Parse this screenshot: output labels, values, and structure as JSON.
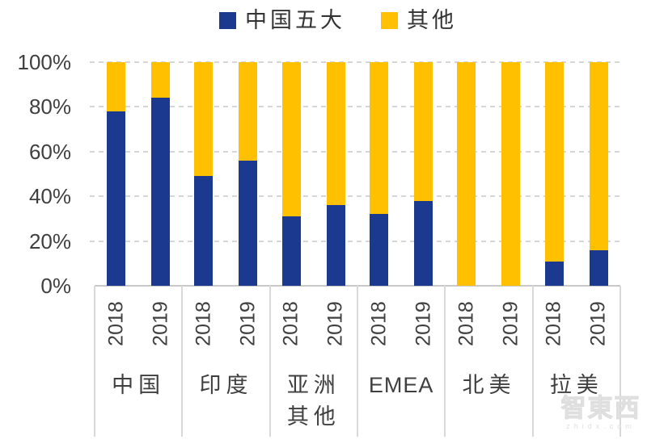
{
  "legend": {
    "items": [
      {
        "label": "中国五大",
        "color": "#1b3a8f"
      },
      {
        "label": "其他",
        "color": "#ffc000"
      }
    ]
  },
  "chart_data": {
    "type": "bar",
    "stacked": true,
    "title": "",
    "xlabel": "",
    "ylabel": "",
    "ylim": [
      0,
      100
    ],
    "grid": "dashed-horizontal",
    "legend_position": "top-center",
    "y_ticks": [
      "100%",
      "80%",
      "60%",
      "40%",
      "20%",
      "0%"
    ],
    "groups": [
      "中国",
      "印度",
      "亚洲\n其他",
      "EMEA",
      "北美",
      "拉美"
    ],
    "years": [
      "2018",
      "2019"
    ],
    "series": [
      {
        "name": "中国五大",
        "color": "#1b3a8f",
        "values": [
          78,
          84,
          49,
          56,
          31,
          36,
          32,
          38,
          0,
          0,
          11,
          16
        ]
      },
      {
        "name": "其他",
        "color": "#ffc000",
        "values": [
          22,
          16,
          51,
          44,
          69,
          64,
          68,
          62,
          100,
          100,
          89,
          84
        ]
      }
    ]
  },
  "watermark": {
    "text": "智東西",
    "subtext": "zhidx.com"
  },
  "colors": {
    "blue": "#1b3a8f",
    "gold": "#ffc000",
    "gridline": "#d6d6d6",
    "axis": "#c9c9c9",
    "tick_text": "#3f3f3f"
  }
}
